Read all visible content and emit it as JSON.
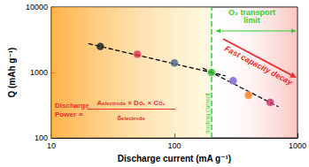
{
  "chart_data": {
    "type": "scatter",
    "log": true,
    "grid": false,
    "x_label": "Discharge current (mA g⁻¹)",
    "y_label": "Q (mAh g⁻¹)",
    "xlim": [
      10,
      1000
    ],
    "ylim": [
      100,
      10000
    ],
    "xticks": [
      10,
      100,
      1000
    ],
    "yticks": [
      100,
      1000,
      10000
    ],
    "series": [
      {
        "type": "scatter",
        "marker": "circle",
        "x": [
          25,
          50,
          100,
          200,
          300,
          400,
          600
        ],
        "values": [
          2500,
          1900,
          1400,
          1000,
          750,
          450,
          350
        ],
        "colors": [
          "#1a1a1a",
          "#e0304a",
          "#4a6585",
          "#2fb52f",
          "#7b5bd6",
          "#ff7a1e",
          "#c42e6a"
        ]
      },
      {
        "type": "line",
        "x": [
          20,
          260
        ],
        "values": [
          2760,
          890
        ],
        "color": "#000000",
        "line_style": "dashed"
      },
      {
        "type": "line",
        "x": [
          170,
          700
        ],
        "values": [
          1170,
          300
        ],
        "color": "#000000",
        "line_style": "dashed"
      }
    ],
    "vline": {
      "x": 200,
      "color": "#33cc33",
      "line_style": "dashed",
      "label": "limiting current"
    },
    "annotations": [
      {
        "text": "O₂ transport\nlimit",
        "color": "#33cc33"
      },
      {
        "text": "Fast capacity decay",
        "color": "#e83030"
      }
    ],
    "formula": {
      "color": "#e83030",
      "lead": "Discharge\nPower ∝",
      "numerator": [
        {
          "text": "A",
          "sub": "electrode"
        },
        {
          "text": " × D",
          "sub": "O₂"
        },
        {
          "text": " × C",
          "sub": "O₂"
        }
      ],
      "denominator": [
        {
          "text": "δ",
          "sub": "electrode"
        }
      ]
    }
  }
}
